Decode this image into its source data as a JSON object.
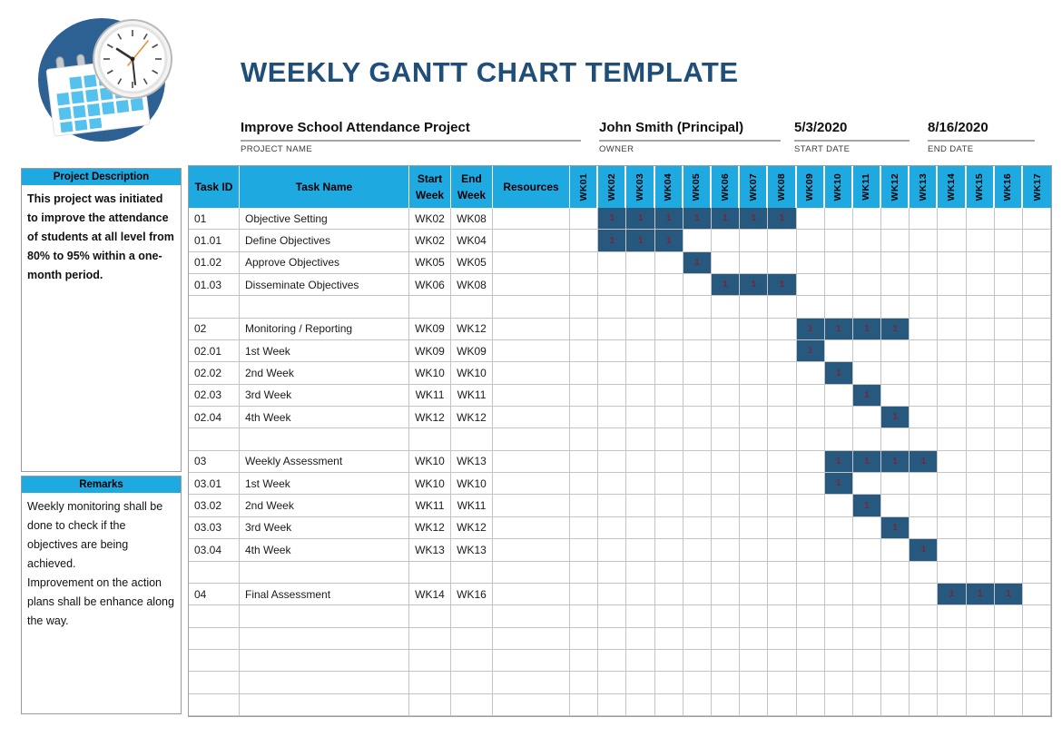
{
  "title": "WEEKLY GANTT CHART TEMPLATE",
  "logo": {
    "icon": "calendar-clock-icon"
  },
  "project_info": {
    "fields": [
      {
        "value": "Improve School Attendance Project",
        "label": "PROJECT NAME"
      },
      {
        "value": "John Smith (Principal)",
        "label": "OWNER"
      },
      {
        "value": "5/3/2020",
        "label": "START DATE"
      },
      {
        "value": "8/16/2020",
        "label": "END DATE"
      }
    ]
  },
  "sidebar": {
    "description": {
      "header": "Project Description",
      "body": "This project was initiated to improve the attendance of students at all level from 80% to 95% within a one-month period."
    },
    "remarks": {
      "header": "Remarks",
      "body": "Weekly monitoring shall be done to check if the objectives are being achieved.\nImprovement on the action plans shall be enhance along the way."
    }
  },
  "table": {
    "headers": {
      "task_id": "Task ID",
      "task_name": "Task Name",
      "start_week": "Start Week",
      "end_week": "End Week",
      "resources": "Resources"
    },
    "week_columns": [
      "WK01",
      "WK02",
      "WK03",
      "WK04",
      "WK05",
      "WK06",
      "WK07",
      "WK08",
      "WK09",
      "WK10",
      "WK11",
      "WK12",
      "WK13",
      "WK14",
      "WK15",
      "WK16",
      "WK17"
    ],
    "bar_value": "1",
    "rows": [
      {
        "task_id": "01",
        "task_name": "Objective Setting",
        "start_week": "WK02",
        "end_week": "WK08",
        "resources": "",
        "bar_start": 2,
        "bar_end": 8
      },
      {
        "task_id": "01.01",
        "task_name": "Define Objectives",
        "start_week": "WK02",
        "end_week": "WK04",
        "resources": "",
        "bar_start": 2,
        "bar_end": 4
      },
      {
        "task_id": "01.02",
        "task_name": "Approve Objectives",
        "start_week": "WK05",
        "end_week": "WK05",
        "resources": "",
        "bar_start": 5,
        "bar_end": 5
      },
      {
        "task_id": "01.03",
        "task_name": "Disseminate Objectives",
        "start_week": "WK06",
        "end_week": "WK08",
        "resources": "",
        "bar_start": 6,
        "bar_end": 8
      },
      {
        "task_id": "",
        "task_name": "",
        "start_week": "",
        "end_week": "",
        "resources": "",
        "bar_start": null,
        "bar_end": null
      },
      {
        "task_id": "02",
        "task_name": "Monitoring / Reporting",
        "start_week": "WK09",
        "end_week": "WK12",
        "resources": "",
        "bar_start": 9,
        "bar_end": 12
      },
      {
        "task_id": "02.01",
        "task_name": "1st Week",
        "start_week": "WK09",
        "end_week": "WK09",
        "resources": "",
        "bar_start": 9,
        "bar_end": 9
      },
      {
        "task_id": "02.02",
        "task_name": "2nd Week",
        "start_week": "WK10",
        "end_week": "WK10",
        "resources": "",
        "bar_start": 10,
        "bar_end": 10
      },
      {
        "task_id": "02.03",
        "task_name": "3rd Week",
        "start_week": "WK11",
        "end_week": "WK11",
        "resources": "",
        "bar_start": 11,
        "bar_end": 11
      },
      {
        "task_id": "02.04",
        "task_name": "4th Week",
        "start_week": "WK12",
        "end_week": "WK12",
        "resources": "",
        "bar_start": 12,
        "bar_end": 12
      },
      {
        "task_id": "",
        "task_name": "",
        "start_week": "",
        "end_week": "",
        "resources": "",
        "bar_start": null,
        "bar_end": null
      },
      {
        "task_id": "03",
        "task_name": "Weekly Assessment",
        "start_week": "WK10",
        "end_week": "WK13",
        "resources": "",
        "bar_start": 10,
        "bar_end": 13
      },
      {
        "task_id": "03.01",
        "task_name": "1st Week",
        "start_week": "WK10",
        "end_week": "WK10",
        "resources": "",
        "bar_start": 10,
        "bar_end": 10
      },
      {
        "task_id": "03.02",
        "task_name": "2nd Week",
        "start_week": "WK11",
        "end_week": "WK11",
        "resources": "",
        "bar_start": 11,
        "bar_end": 11
      },
      {
        "task_id": "03.03",
        "task_name": "3rd Week",
        "start_week": "WK12",
        "end_week": "WK12",
        "resources": "",
        "bar_start": 12,
        "bar_end": 12
      },
      {
        "task_id": "03.04",
        "task_name": "4th Week",
        "start_week": "WK13",
        "end_week": "WK13",
        "resources": "",
        "bar_start": 13,
        "bar_end": 13
      },
      {
        "task_id": "",
        "task_name": "",
        "start_week": "",
        "end_week": "",
        "resources": "",
        "bar_start": null,
        "bar_end": null
      },
      {
        "task_id": "04",
        "task_name": "Final Assessment",
        "start_week": "WK14",
        "end_week": "WK16",
        "resources": "",
        "bar_start": 14,
        "bar_end": 16
      },
      {
        "task_id": "",
        "task_name": "",
        "start_week": "",
        "end_week": "",
        "resources": "",
        "bar_start": null,
        "bar_end": null
      },
      {
        "task_id": "",
        "task_name": "",
        "start_week": "",
        "end_week": "",
        "resources": "",
        "bar_start": null,
        "bar_end": null
      },
      {
        "task_id": "",
        "task_name": "",
        "start_week": "",
        "end_week": "",
        "resources": "",
        "bar_start": null,
        "bar_end": null
      },
      {
        "task_id": "",
        "task_name": "",
        "start_week": "",
        "end_week": "",
        "resources": "",
        "bar_start": null,
        "bar_end": null
      },
      {
        "task_id": "",
        "task_name": "",
        "start_week": "",
        "end_week": "",
        "resources": "",
        "bar_start": null,
        "bar_end": null
      }
    ]
  },
  "colors": {
    "accent_cyan": "#1fa9e1",
    "bar_blue": "#27597e",
    "bar_value_red": "#7b2438",
    "title_blue": "#1f4e79",
    "grid_gray": "#c4c4c4",
    "logo_circle_blue": "#2d6194",
    "calendar_square_blue": "#55c1ef"
  },
  "chart_data": {
    "type": "table",
    "subtype": "gantt",
    "title": "WEEKLY GANTT CHART TEMPLATE",
    "x": [
      "WK01",
      "WK02",
      "WK03",
      "WK04",
      "WK05",
      "WK06",
      "WK07",
      "WK08",
      "WK09",
      "WK10",
      "WK11",
      "WK12",
      "WK13",
      "WK14",
      "WK15",
      "WK16",
      "WK17"
    ],
    "cell_value": 1,
    "tasks": [
      {
        "id": "01",
        "name": "Objective Setting",
        "start": "WK02",
        "end": "WK08",
        "weeks_filled": 7
      },
      {
        "id": "01.01",
        "name": "Define Objectives",
        "start": "WK02",
        "end": "WK04",
        "weeks_filled": 3
      },
      {
        "id": "01.02",
        "name": "Approve Objectives",
        "start": "WK05",
        "end": "WK05",
        "weeks_filled": 1
      },
      {
        "id": "01.03",
        "name": "Disseminate Objectives",
        "start": "WK06",
        "end": "WK08",
        "weeks_filled": 3
      },
      {
        "id": "02",
        "name": "Monitoring / Reporting",
        "start": "WK09",
        "end": "WK12",
        "weeks_filled": 4
      },
      {
        "id": "02.01",
        "name": "1st Week",
        "start": "WK09",
        "end": "WK09",
        "weeks_filled": 1
      },
      {
        "id": "02.02",
        "name": "2nd Week",
        "start": "WK10",
        "end": "WK10",
        "weeks_filled": 1
      },
      {
        "id": "02.03",
        "name": "3rd Week",
        "start": "WK11",
        "end": "WK11",
        "weeks_filled": 1
      },
      {
        "id": "02.04",
        "name": "4th Week",
        "start": "WK12",
        "end": "WK12",
        "weeks_filled": 1
      },
      {
        "id": "03",
        "name": "Weekly Assessment",
        "start": "WK10",
        "end": "WK13",
        "weeks_filled": 4
      },
      {
        "id": "03.01",
        "name": "1st Week",
        "start": "WK10",
        "end": "WK10",
        "weeks_filled": 1
      },
      {
        "id": "03.02",
        "name": "2nd Week",
        "start": "WK11",
        "end": "WK11",
        "weeks_filled": 1
      },
      {
        "id": "03.03",
        "name": "3rd Week",
        "start": "WK12",
        "end": "WK12",
        "weeks_filled": 1
      },
      {
        "id": "03.04",
        "name": "4th Week",
        "start": "WK13",
        "end": "WK13",
        "weeks_filled": 1
      },
      {
        "id": "04",
        "name": "Final Assessment",
        "start": "WK14",
        "end": "WK16",
        "weeks_filled": 3
      }
    ]
  }
}
